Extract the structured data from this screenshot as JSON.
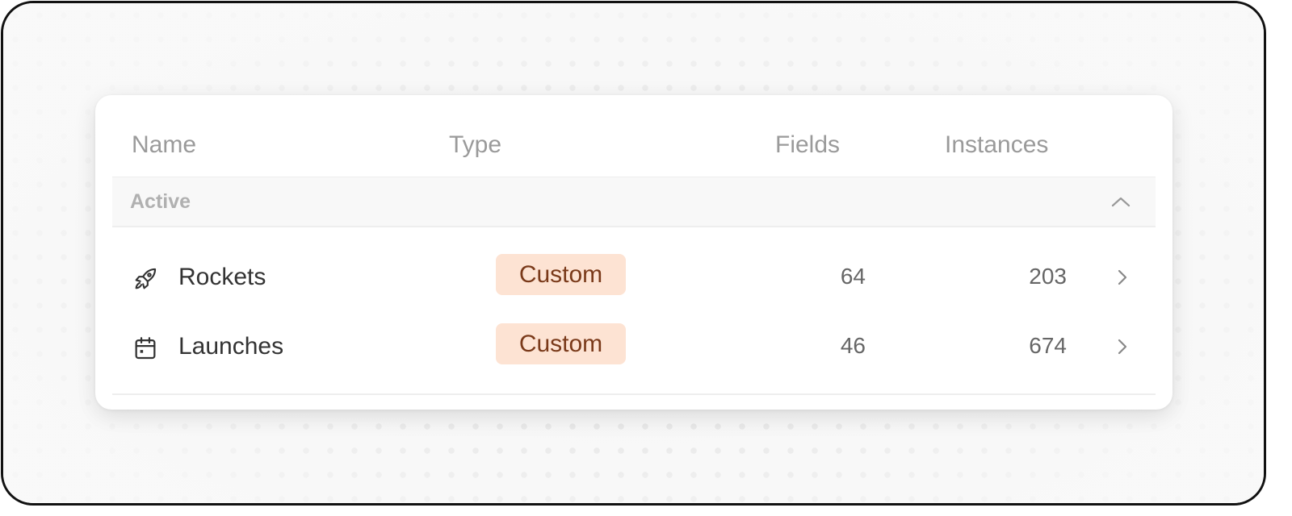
{
  "table": {
    "columns": {
      "name": "Name",
      "type": "Type",
      "fields": "Fields",
      "instances": "Instances"
    },
    "group": {
      "label": "Active",
      "expanded": true
    },
    "rows": [
      {
        "icon": "rocket-icon",
        "name": "Rockets",
        "type": "Custom",
        "fields": "64",
        "instances": "203"
      },
      {
        "icon": "calendar-icon",
        "name": "Launches",
        "type": "Custom",
        "fields": "46",
        "instances": "674"
      }
    ]
  },
  "colors": {
    "badge_bg": "#fde3d3",
    "badge_text": "#7a3a1a"
  }
}
